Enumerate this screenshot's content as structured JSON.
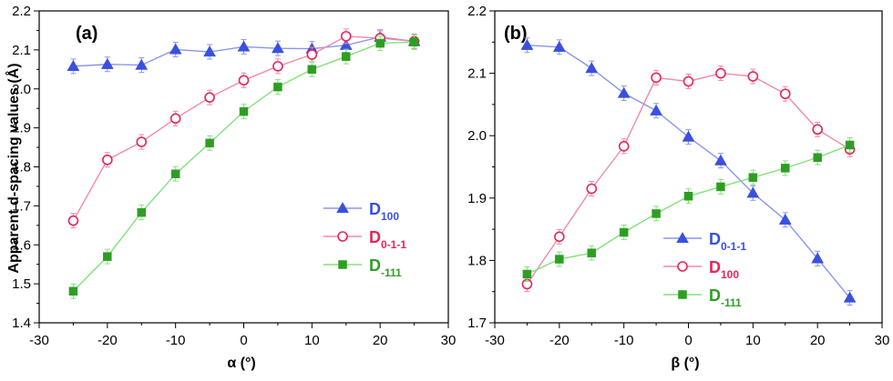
{
  "figure": {
    "ylabel": "Apparent d-spacing values (Å)"
  },
  "chart_data": [
    {
      "type": "line",
      "panel_label": "(a)",
      "xlabel": "α (°)",
      "ylabel": "Apparent d-spacing values (Å)",
      "xlim": [
        -30,
        30
      ],
      "ylim": [
        1.4,
        2.2
      ],
      "xticks": [
        -30,
        -20,
        -10,
        0,
        10,
        20,
        30
      ],
      "yticks": [
        1.4,
        1.5,
        1.6,
        1.7,
        1.8,
        1.9,
        2.0,
        2.1,
        2.2
      ],
      "x": [
        -25,
        -20,
        -15,
        -10,
        -5,
        0,
        5,
        10,
        15,
        20,
        25
      ],
      "legend_position": "right",
      "series": [
        {
          "label_main": "D",
          "label_sub": "100",
          "color": "#3a50e0",
          "line_color": "#8b95ee",
          "marker": "triangle",
          "values": [
            2.058,
            2.063,
            2.061,
            2.101,
            2.095,
            2.108,
            2.104,
            2.103,
            2.112,
            2.133,
            2.122
          ]
        },
        {
          "label_main": "D",
          "label_sub": "0-1-1",
          "color": "#e8245a",
          "line_color": "#f08aa6",
          "marker": "circle-open",
          "values": [
            1.662,
            1.818,
            1.864,
            1.924,
            1.978,
            2.022,
            2.058,
            2.088,
            2.135,
            2.13,
            2.122
          ]
        },
        {
          "label_main": "D",
          "label_sub": "-111",
          "color": "#2e9e23",
          "line_color": "#80e27a",
          "marker": "square",
          "values": [
            1.481,
            1.57,
            1.683,
            1.782,
            1.861,
            1.942,
            2.005,
            2.05,
            2.083,
            2.117,
            2.12
          ]
        }
      ]
    },
    {
      "type": "line",
      "panel_label": "(b)",
      "xlabel": "β (°)",
      "ylabel": "",
      "xlim": [
        -30,
        30
      ],
      "ylim": [
        1.7,
        2.2
      ],
      "xticks": [
        -30,
        -20,
        -10,
        0,
        10,
        20,
        30
      ],
      "yticks": [
        1.7,
        1.8,
        1.9,
        2.0,
        2.1,
        2.2
      ],
      "x": [
        -25,
        -20,
        -15,
        -10,
        -5,
        0,
        5,
        10,
        15,
        20,
        25
      ],
      "legend_position": "bottom-right",
      "series": [
        {
          "label_main": "D",
          "label_sub": "0-1-1",
          "color": "#3a50e0",
          "line_color": "#8b95ee",
          "marker": "triangle",
          "values": [
            2.145,
            2.142,
            2.108,
            2.068,
            2.04,
            1.998,
            1.96,
            1.908,
            1.865,
            1.803,
            1.74
          ]
        },
        {
          "label_main": "D",
          "label_sub": "100",
          "color": "#e8245a",
          "line_color": "#f08aa6",
          "marker": "circle-open",
          "values": [
            1.762,
            1.838,
            1.915,
            1.983,
            2.093,
            2.087,
            2.1,
            2.095,
            2.067,
            2.01,
            1.978
          ]
        },
        {
          "label_main": "D",
          "label_sub": "-111",
          "color": "#2e9e23",
          "line_color": "#80e27a",
          "marker": "square",
          "values": [
            1.778,
            1.802,
            1.812,
            1.845,
            1.875,
            1.903,
            1.918,
            1.933,
            1.948,
            1.965,
            1.985
          ]
        }
      ]
    }
  ]
}
